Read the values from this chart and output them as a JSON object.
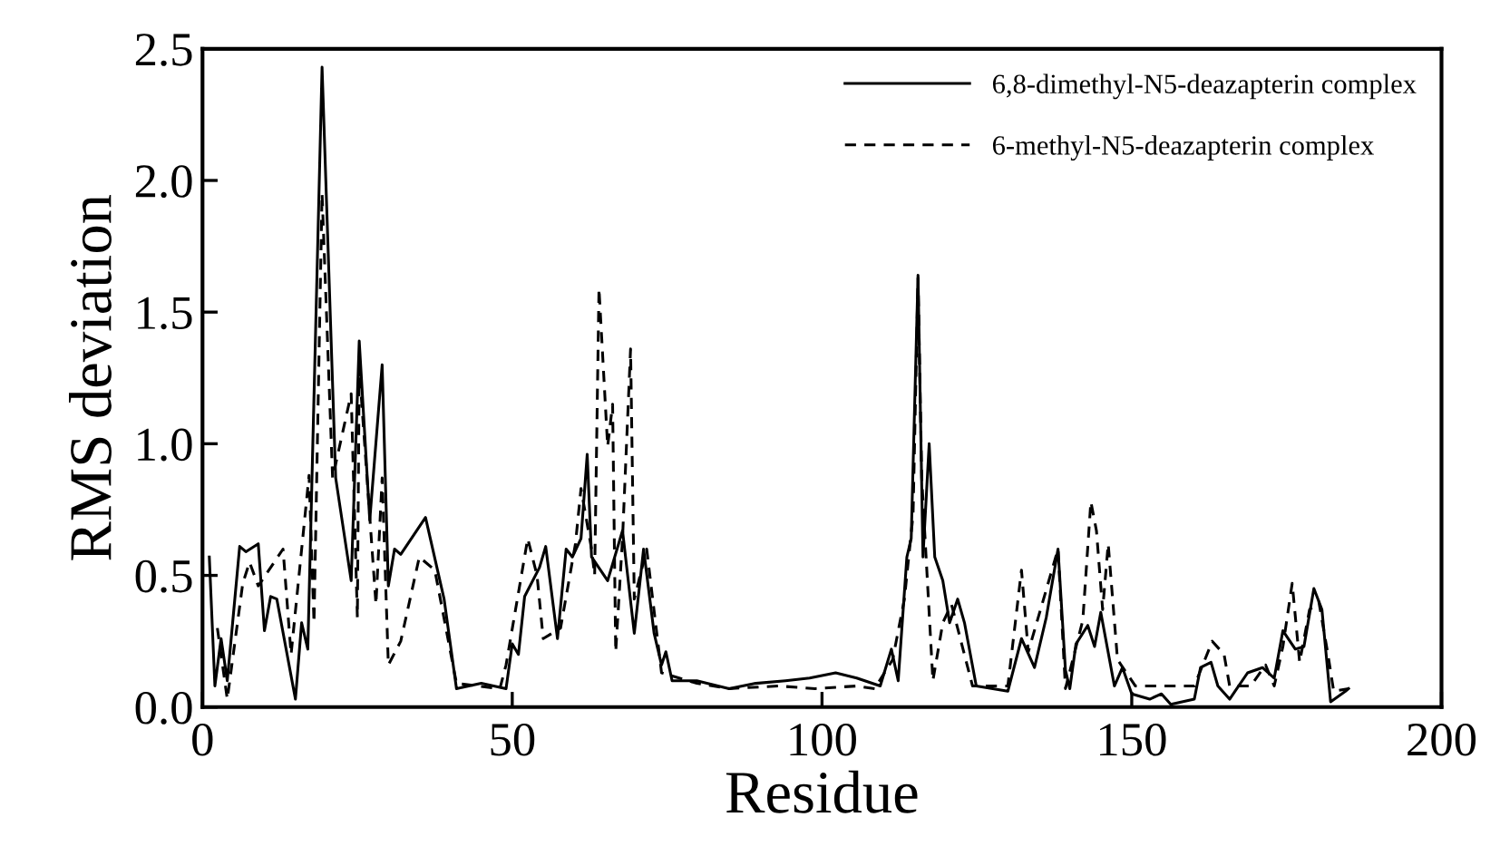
{
  "chart_data": {
    "type": "line",
    "xlabel": "Residue",
    "ylabel": "RMS deviation",
    "xlim": [
      0,
      200
    ],
    "ylim": [
      0,
      2.5
    ],
    "xticks": [
      0,
      50,
      100,
      150,
      200
    ],
    "yticks": [
      {
        "value": 0,
        "label": "0.0"
      },
      {
        "value": 0.5,
        "label": "0.5"
      },
      {
        "value": 1,
        "label": "1.0"
      },
      {
        "value": 1.5,
        "label": "1.5"
      },
      {
        "value": 2,
        "label": "2.0"
      },
      {
        "value": 2.5,
        "label": "2.5"
      }
    ],
    "grid": false,
    "legend": "top right",
    "marker": "none",
    "series": [
      {
        "name": "6,8-dimethyl-N5-deazapterin complex",
        "color": "#000000",
        "line_style": "solid",
        "x": [
          1.1,
          2,
          3,
          4,
          6,
          7,
          9,
          10,
          11,
          12,
          15,
          16,
          17,
          19.3,
          21.5,
          24,
          25.3,
          27,
          29,
          30,
          31,
          32,
          36,
          39,
          41,
          45,
          49,
          50,
          51,
          52,
          54.4,
          55.4,
          57.3,
          58.7,
          59.7,
          61.1,
          62.1,
          62.8,
          65.4,
          67.8,
          69.7,
          71.2,
          72.9,
          74.1,
          74.8,
          75.8,
          79.8,
          85,
          89.3,
          94.1,
          98,
          102.2,
          105.6,
          109.4,
          111.2,
          112.3,
          113.7,
          114.4,
          115.5,
          116.3,
          117.3,
          118.2,
          119.5,
          120.6,
          121.9,
          123,
          124.9,
          130,
          132.2,
          134.3,
          136.2,
          138.1,
          139.3,
          140,
          141,
          142.9,
          144,
          145,
          147.2,
          148.5,
          150,
          152.9,
          154.8,
          156.3,
          160.1,
          161.1,
          162.8,
          163.9,
          165.8,
          168.7,
          171.1,
          173,
          174.4,
          176.4,
          177.8,
          179.4,
          180.7,
          182.1,
          184.5,
          185
        ],
        "values": [
          0.57,
          0.08,
          0.26,
          0.1,
          0.61,
          0.59,
          0.62,
          0.29,
          0.42,
          0.41,
          0.03,
          0.32,
          0.22,
          2.43,
          0.87,
          0.48,
          1.39,
          0.71,
          1.3,
          0.46,
          0.6,
          0.58,
          0.72,
          0.41,
          0.07,
          0.09,
          0.07,
          0.24,
          0.2,
          0.42,
          0.53,
          0.61,
          0.26,
          0.6,
          0.57,
          0.64,
          0.96,
          0.57,
          0.48,
          0.67,
          0.28,
          0.6,
          0.28,
          0.16,
          0.21,
          0.1,
          0.1,
          0.07,
          0.09,
          0.1,
          0.11,
          0.13,
          0.11,
          0.08,
          0.22,
          0.1,
          0.57,
          0.64,
          1.64,
          0.57,
          1.0,
          0.57,
          0.48,
          0.32,
          0.41,
          0.32,
          0.08,
          0.06,
          0.26,
          0.15,
          0.34,
          0.6,
          0.14,
          0.07,
          0.24,
          0.31,
          0.23,
          0.36,
          0.08,
          0.15,
          0.05,
          0.03,
          0.05,
          0.01,
          0.03,
          0.15,
          0.17,
          0.08,
          0.03,
          0.13,
          0.15,
          0.11,
          0.29,
          0.22,
          0.23,
          0.45,
          0.37,
          0.02,
          0.06,
          0.07
        ]
      },
      {
        "name": "6-methyl-N5-deazapterin complex",
        "color": "#000000",
        "line_style": "dashed",
        "x": [
          2.4,
          4,
          6.5,
          7.6,
          9,
          13,
          14.3,
          17.2,
          18,
          19.3,
          21,
          24,
          25,
          25.3,
          28,
          29,
          30,
          32,
          35,
          37.5,
          41,
          48,
          49,
          52.5,
          54,
          55,
          57.8,
          60.2,
          61.1,
          62.8,
          63.3,
          64,
          65.4,
          66.2,
          66.7,
          67.8,
          69.1,
          69.7,
          71.7,
          74.1,
          79.8,
          85,
          93,
          98.9,
          105.6,
          108.5,
          111.4,
          113.3,
          114.7,
          115.5,
          116.1,
          117.9,
          119.5,
          120.9,
          124.3,
          130,
          131.2,
          132.2,
          133.3,
          138.1,
          139.3,
          142.1,
          143.4,
          144.3,
          145.3,
          146.2,
          147.7,
          150.6,
          160.1,
          163,
          164.9,
          165.8,
          169.2,
          171.6,
          173,
          174.4,
          175.9,
          177.1,
          178.7,
          180.2,
          181.6,
          182.6,
          185
        ],
        "values": [
          0.3,
          0.03,
          0.47,
          0.55,
          0.46,
          0.6,
          0.2,
          0.88,
          0.32,
          1.95,
          0.87,
          1.19,
          0.34,
          1.29,
          0.39,
          0.87,
          0.16,
          0.25,
          0.57,
          0.52,
          0.09,
          0.07,
          0.16,
          0.64,
          0.5,
          0.26,
          0.3,
          0.62,
          0.83,
          0.6,
          0.5,
          1.59,
          0.99,
          1.15,
          0.21,
          0.64,
          1.36,
          0.41,
          0.6,
          0.13,
          0.09,
          0.07,
          0.08,
          0.07,
          0.08,
          0.07,
          0.18,
          0.41,
          0.73,
          1.63,
          0.87,
          0.1,
          0.32,
          0.39,
          0.08,
          0.08,
          0.32,
          0.52,
          0.21,
          0.6,
          0.07,
          0.33,
          0.78,
          0.67,
          0.37,
          0.62,
          0.18,
          0.08,
          0.08,
          0.25,
          0.2,
          0.08,
          0.08,
          0.16,
          0.08,
          0.23,
          0.47,
          0.17,
          0.37,
          0.4,
          0.21,
          0.06,
          0.07
        ]
      }
    ]
  }
}
